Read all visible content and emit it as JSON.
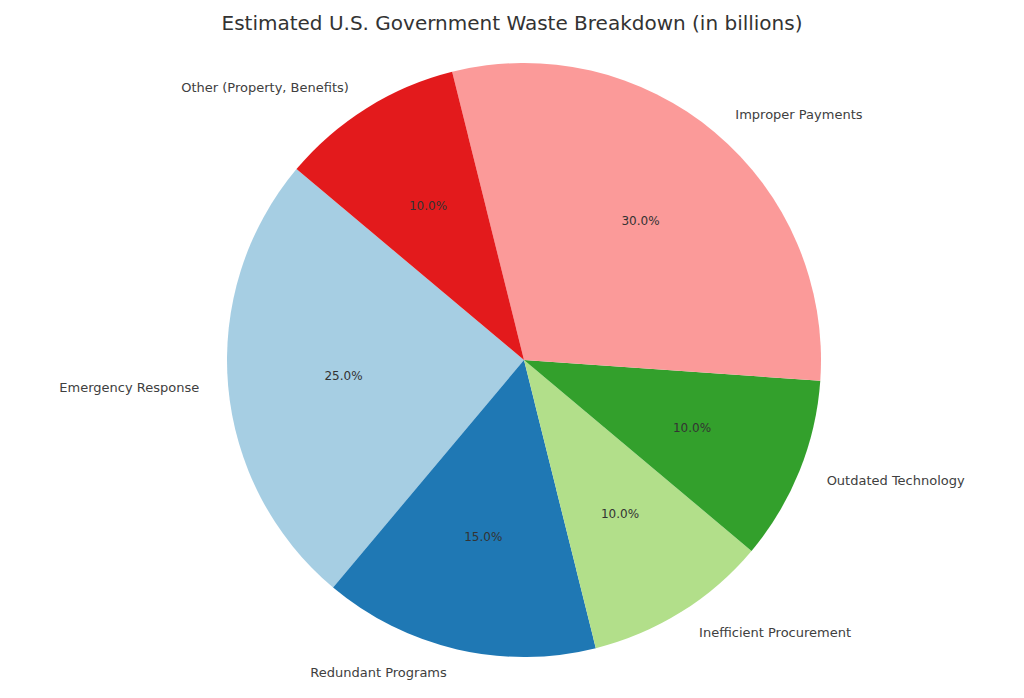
{
  "chart_data": {
    "type": "pie",
    "title": "Estimated U.S. Government Waste Breakdown (in billions)",
    "categories": [
      "Emergency Response",
      "Redundant Programs",
      "Inefficient Procurement",
      "Outdated Technology",
      "Improper Payments",
      "Other (Property, Benefits)"
    ],
    "values": [
      25,
      15,
      10,
      10,
      30,
      10
    ],
    "value_labels": [
      "25.0%",
      "15.0%",
      "10.0%",
      "10.0%",
      "30.0%",
      "10.0%"
    ],
    "colors": [
      "#a6cee3",
      "#1f78b4",
      "#b2df8a",
      "#33a02c",
      "#fb9a99",
      "#e31a1c"
    ],
    "data_labels": true
  }
}
